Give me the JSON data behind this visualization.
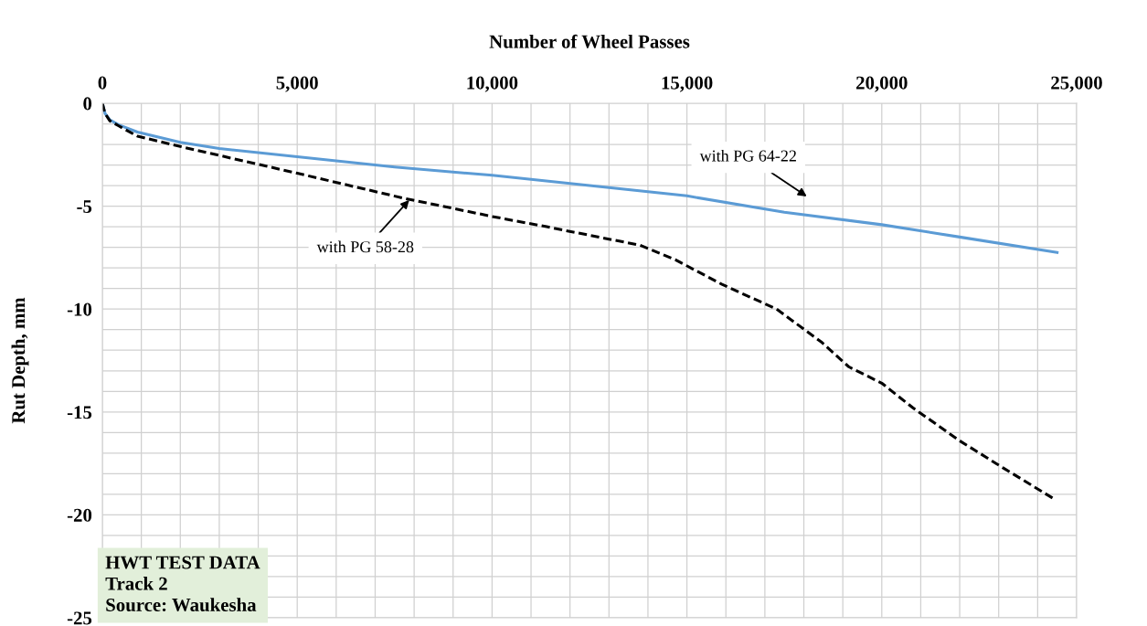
{
  "chart_data": {
    "type": "line",
    "xlabel": "Number of Wheel Passes",
    "ylabel": "Rut Depth, mm",
    "xlim": [
      0,
      25000
    ],
    "ylim": [
      -25,
      0
    ],
    "xticks": [
      {
        "value": 0,
        "label": "0"
      },
      {
        "value": 1000,
        "label": null
      },
      {
        "value": 2000,
        "label": null
      },
      {
        "value": 3000,
        "label": null
      },
      {
        "value": 4000,
        "label": null
      },
      {
        "value": 5000,
        "label": "5,000"
      },
      {
        "value": 6000,
        "label": null
      },
      {
        "value": 7000,
        "label": null
      },
      {
        "value": 8000,
        "label": null
      },
      {
        "value": 9000,
        "label": null
      },
      {
        "value": 10000,
        "label": "10,000"
      },
      {
        "value": 11000,
        "label": null
      },
      {
        "value": 12000,
        "label": null
      },
      {
        "value": 13000,
        "label": null
      },
      {
        "value": 14000,
        "label": null
      },
      {
        "value": 15000,
        "label": "15,000"
      },
      {
        "value": 16000,
        "label": null
      },
      {
        "value": 17000,
        "label": null
      },
      {
        "value": 18000,
        "label": null
      },
      {
        "value": 19000,
        "label": null
      },
      {
        "value": 20000,
        "label": "20,000"
      },
      {
        "value": 21000,
        "label": null
      },
      {
        "value": 22000,
        "label": null
      },
      {
        "value": 23000,
        "label": null
      },
      {
        "value": 24000,
        "label": null
      },
      {
        "value": 25000,
        "label": "25,000"
      }
    ],
    "yticks": [
      {
        "value": 0,
        "label": "0"
      },
      {
        "value": -1,
        "label": null
      },
      {
        "value": -2,
        "label": null
      },
      {
        "value": -3,
        "label": null
      },
      {
        "value": -4,
        "label": null
      },
      {
        "value": -5,
        "label": "-5"
      },
      {
        "value": -6,
        "label": null
      },
      {
        "value": -7,
        "label": null
      },
      {
        "value": -8,
        "label": null
      },
      {
        "value": -9,
        "label": null
      },
      {
        "value": -10,
        "label": "-10"
      },
      {
        "value": -11,
        "label": null
      },
      {
        "value": -12,
        "label": null
      },
      {
        "value": -13,
        "label": null
      },
      {
        "value": -14,
        "label": null
      },
      {
        "value": -15,
        "label": "-15"
      },
      {
        "value": -16,
        "label": null
      },
      {
        "value": -17,
        "label": null
      },
      {
        "value": -18,
        "label": null
      },
      {
        "value": -19,
        "label": null
      },
      {
        "value": -20,
        "label": "-20"
      },
      {
        "value": -21,
        "label": null
      },
      {
        "value": -22,
        "label": null
      },
      {
        "value": -23,
        "label": null
      },
      {
        "value": -24,
        "label": null
      },
      {
        "value": -25,
        "label": "-25"
      }
    ],
    "grid": true,
    "marker": "none",
    "series": [
      {
        "color": "#5b9bd5",
        "line_style": "solid",
        "x": [
          0,
          70,
          190,
          420,
          900,
          2000,
          3000,
          5000,
          7500,
          10000,
          12500,
          15000,
          17500,
          20000,
          22000,
          24500
        ],
        "values": [
          0,
          -0.5,
          -0.8,
          -1.05,
          -1.4,
          -1.9,
          -2.2,
          -2.6,
          -3.1,
          -3.5,
          -4.0,
          -4.5,
          -5.3,
          -5.9,
          -6.5,
          -7.25
        ]
      },
      {
        "color": "#000000",
        "line_style": "dashed",
        "x": [
          0,
          70,
          190,
          420,
          900,
          2000,
          5000,
          7700,
          10000,
          11400,
          13800,
          14700,
          15900,
          17300,
          18450,
          19150,
          20000,
          20800,
          22000,
          23100,
          24400
        ],
        "values": [
          0,
          -0.5,
          -0.85,
          -1.1,
          -1.6,
          -2.1,
          -3.4,
          -4.6,
          -5.5,
          -6.0,
          -6.9,
          -7.6,
          -8.8,
          -10.0,
          -11.6,
          -12.8,
          -13.6,
          -14.8,
          -16.4,
          -17.7,
          -19.2
        ]
      }
    ],
    "annotations": [
      "with PG 64-22",
      "with PG 58-28",
      "HWT TEST DATA\nTrack 2\nSource: Waukesha"
    ]
  }
}
